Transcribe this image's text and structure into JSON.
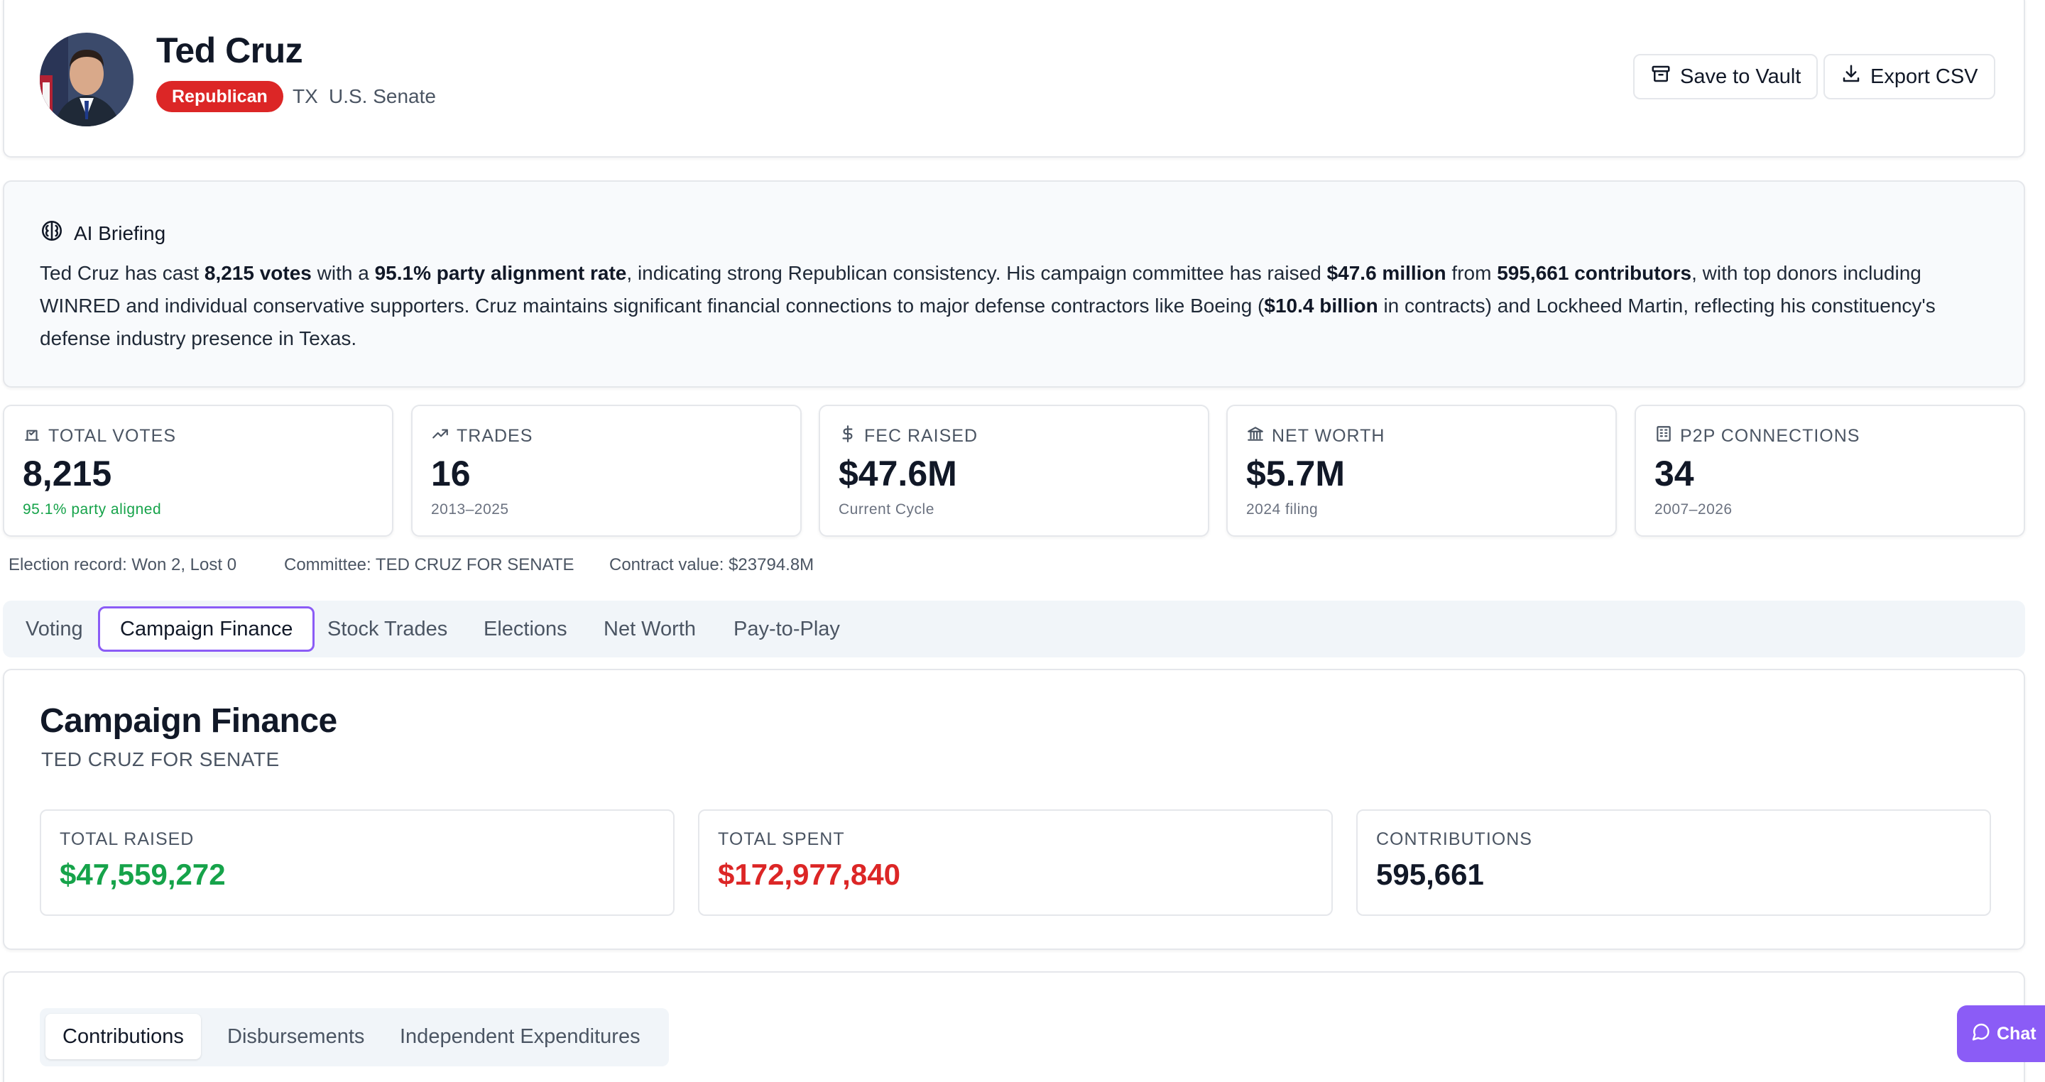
{
  "profile": {
    "name": "Ted Cruz",
    "party": "Republican",
    "state": "TX",
    "chamber": "U.S. Senate"
  },
  "actions": {
    "save_label": "Save to Vault",
    "export_label": "Export CSV"
  },
  "briefing": {
    "title": "AI Briefing",
    "p1": "Ted Cruz has cast ",
    "b1": "8,215 votes",
    "p2": " with a ",
    "b2": "95.1% party alignment rate",
    "p3": ", indicating strong Republican consistency. His campaign committee has raised ",
    "b3": "$47.6 million",
    "p4": " from ",
    "b4": "595,661 contributors",
    "p5": ", with top donors including WINRED and individual conservative supporters. Cruz maintains significant financial connections to major defense contractors like Boeing (",
    "b5": "$10.4 billion",
    "p6": " in contracts) and Lockheed Martin, reflecting his constituency's defense industry presence in Texas."
  },
  "stats": [
    {
      "label": "TOTAL VOTES",
      "value": "8,215",
      "sub": "95.1% party aligned",
      "icon": "vote-icon"
    },
    {
      "label": "TRADES",
      "value": "16",
      "sub": "2013–2025",
      "icon": "trend-icon"
    },
    {
      "label": "FEC RAISED",
      "value": "$47.6M",
      "sub": "Current Cycle",
      "icon": "dollar-icon"
    },
    {
      "label": "NET WORTH",
      "value": "$5.7M",
      "sub": "2024 filing",
      "icon": "bank-icon"
    },
    {
      "label": "P2P CONNECTIONS",
      "value": "34",
      "sub": "2007–2026",
      "icon": "building-icon"
    }
  ],
  "meta": {
    "election": "Election record: Won 2, Lost 0",
    "committee": "Committee: TED CRUZ FOR SENATE",
    "contract": "Contract value: $23794.8M"
  },
  "tabs": [
    "Voting",
    "Campaign Finance",
    "Stock Trades",
    "Elections",
    "Net Worth",
    "Pay-to-Play"
  ],
  "active_tab": "Campaign Finance",
  "finance": {
    "title": "Campaign Finance",
    "committee": "TED CRUZ FOR SENATE",
    "boxes": [
      {
        "label": "TOTAL RAISED",
        "value": "$47,559,272"
      },
      {
        "label": "TOTAL SPENT",
        "value": "$172,977,840"
      },
      {
        "label": "CONTRIBUTIONS",
        "value": "595,661"
      }
    ]
  },
  "subtabs": [
    "Contributions",
    "Disbursements",
    "Independent Expenditures"
  ],
  "chat_label": "Chat",
  "colors": {
    "republican": "#dc2626",
    "accent": "#8b5cf6",
    "positive": "#16a34a",
    "negative": "#dc2626"
  }
}
